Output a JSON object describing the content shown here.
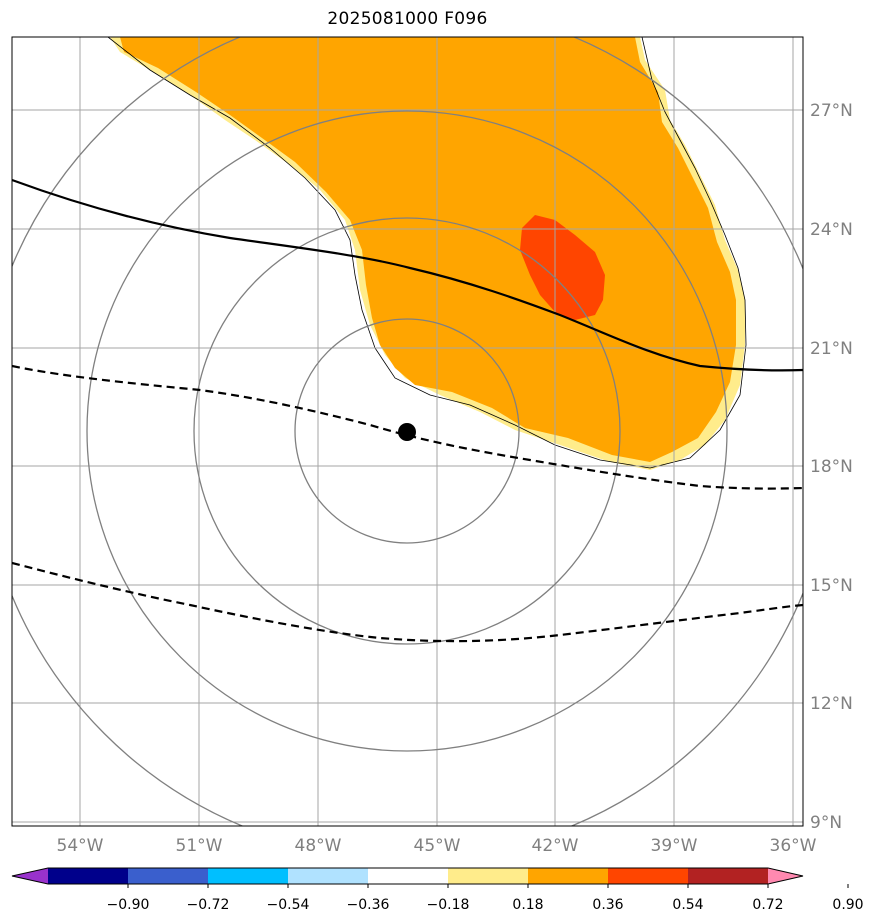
{
  "title": "2025081000 F096",
  "latitude_labels": [
    "27°N",
    "24°N",
    "21°N",
    "18°N",
    "15°N",
    "12°N",
    "9°N"
  ],
  "longitude_labels": [
    "54°W",
    "51°W",
    "48°W",
    "45°W",
    "42°W",
    "39°W",
    "36°W"
  ],
  "colorbar": {
    "tick_labels": [
      "−0.90",
      "−0.72",
      "−0.54",
      "−0.36",
      "−0.18",
      "0.18",
      "0.36",
      "0.54",
      "0.72",
      "0.90"
    ],
    "colors": [
      "#9932cc",
      "#00008b",
      "#3a5fcd",
      "#00bfff",
      "#b0e2ff",
      "#ffffff",
      "#ffec8b",
      "#ffa500",
      "#ff4500",
      "#b22222",
      "#ff89b0"
    ]
  },
  "colors": {
    "orange_fill": "#ffa500",
    "light_yellow_fill": "#ffec8b",
    "red_fill": "#ff4500",
    "gridline": "#a0a0a0",
    "range_ring": "#808080",
    "contour": "#000000"
  },
  "center_marker_icon": "filled-circle"
}
